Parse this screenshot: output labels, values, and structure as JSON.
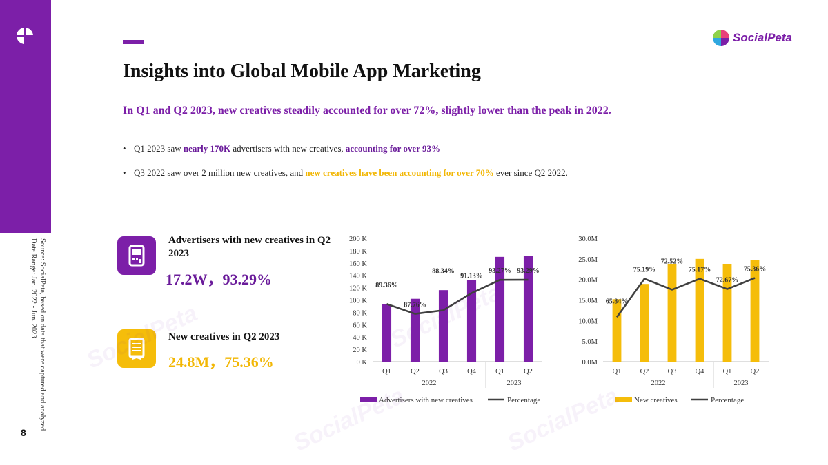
{
  "page": {
    "number": "8",
    "title": "Insights into Global Mobile App Marketing",
    "brand": "SocialPeta",
    "watermark": "SocialPeta",
    "source_lines": [
      "Source: SocialPeta, based on data that were captured and analyzed",
      "Date Range: Jan. 2022 - Jun. 2023"
    ],
    "subtitle": "In Q1 and Q2 2023, new creatives steadily accounted for over 72%, slightly lower than the peak in 2022."
  },
  "bullets": [
    {
      "a": "Q1 2023 saw ",
      "b": "nearly 170K",
      "c": " advertisers with new creatives, ",
      "d": "accounting for over 93%",
      "e": ""
    },
    {
      "a": "Q3 2022 saw over 2 million new creatives, and ",
      "b": "new creatives have been accounting for over 70%",
      "c": " ever since Q2 2022."
    }
  ],
  "kpis": [
    {
      "label": "Advertisers with new creatives in Q2 2023",
      "value": "17.2W，93.29%",
      "icon": "advertiser-device-icon"
    },
    {
      "label": "New creatives in Q2 2023",
      "value": "24.8M，75.36%",
      "icon": "creative-document-icon"
    }
  ],
  "colors": {
    "purple": "#7c1fa8",
    "yellow": "#f5bd0a",
    "line": "#404040"
  },
  "chart_data": [
    {
      "type": "bar",
      "title": "",
      "categories": [
        "Q1",
        "Q2",
        "Q3",
        "Q4",
        "Q1",
        "Q2"
      ],
      "year_groups": [
        {
          "label": "2022",
          "start": 0,
          "end": 3
        },
        {
          "label": "2023",
          "start": 4,
          "end": 5
        }
      ],
      "series": [
        {
          "name": "Advertisers with new creatives",
          "kind": "bar",
          "axis": "left",
          "values": [
            93,
            102,
            116,
            132,
            170,
            172
          ]
        },
        {
          "name": "Percentage",
          "kind": "line",
          "axis": "right",
          "values": [
            89.36,
            87.76,
            88.34,
            91.13,
            93.27,
            93.29
          ],
          "labels": [
            "89.36%",
            "87.76%",
            "88.34%",
            "91.13%",
            "93.27%",
            "93.29%"
          ],
          "ylim": [
            80,
            100
          ]
        }
      ],
      "ylim": [
        0,
        200
      ],
      "yticks": [
        "0 K",
        "20 K",
        "40 K",
        "60 K",
        "80 K",
        "100 K",
        "120 K",
        "140 K",
        "160 K",
        "180 K",
        "200 K"
      ],
      "ytick_values": [
        0,
        20,
        40,
        60,
        80,
        100,
        120,
        140,
        160,
        180,
        200
      ],
      "legend": "bottom"
    },
    {
      "type": "bar",
      "title": "",
      "categories": [
        "Q1",
        "Q2",
        "Q3",
        "Q4",
        "Q1",
        "Q2"
      ],
      "year_groups": [
        {
          "label": "2022",
          "start": 0,
          "end": 3
        },
        {
          "label": "2023",
          "start": 4,
          "end": 5
        }
      ],
      "series": [
        {
          "name": "New creatives",
          "kind": "bar",
          "axis": "left",
          "values": [
            15.2,
            18.9,
            23.8,
            25.0,
            23.8,
            24.8
          ]
        },
        {
          "name": "Percentage",
          "kind": "line",
          "axis": "right",
          "values": [
            65.84,
            75.19,
            72.52,
            75.17,
            72.67,
            75.36
          ],
          "labels": [
            "65.84%",
            "75.19%",
            "72.52%",
            "75.17%",
            "72.67%",
            "75.36%"
          ],
          "ylim": [
            55,
            85
          ]
        }
      ],
      "ylim": [
        0,
        30
      ],
      "yticks": [
        "0.0M",
        "5.0M",
        "10.0M",
        "15.0M",
        "20.0M",
        "25.0M",
        "30.0M"
      ],
      "ytick_values": [
        0,
        5,
        10,
        15,
        20,
        25,
        30
      ],
      "legend": "bottom"
    }
  ]
}
